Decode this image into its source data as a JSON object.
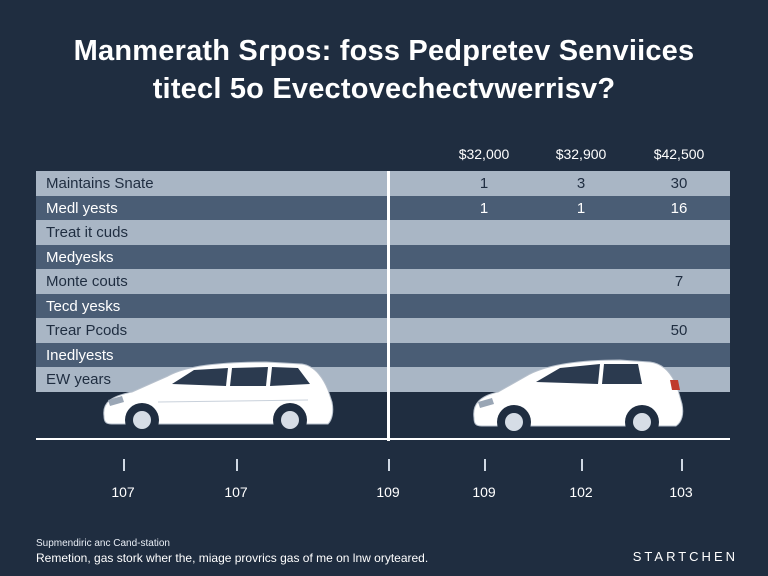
{
  "title_lines": [
    "Manmerath Sɾpos: foss Pedpretev Senviices",
    "titecl 5o Evectovechectvwerrisv?"
  ],
  "chart_data": {
    "type": "table",
    "title": "Manmerath Sɾpos: foss Pedpretev Senviices titecl 5o Evectovechectvwerrisv?",
    "column_headers": [
      "$32,000",
      "$32,900",
      "$42,500"
    ],
    "rows": [
      {
        "label": "Maintains Snate",
        "values": [
          "1",
          "3",
          "30"
        ]
      },
      {
        "label": "Medl yests",
        "values": [
          "1",
          "1",
          "16"
        ]
      },
      {
        "label": "Treat it cuds",
        "values": [
          "",
          "",
          ""
        ]
      },
      {
        "label": "Medyesks",
        "values": [
          "",
          "",
          ""
        ]
      },
      {
        "label": "Monte couts",
        "values": [
          "",
          "",
          "7"
        ]
      },
      {
        "label": "Tecd yesks",
        "values": [
          "",
          "",
          ""
        ]
      },
      {
        "label": "Trear Pcods",
        "values": [
          "",
          "",
          "50"
        ]
      },
      {
        "label": "Inedlyests",
        "values": [
          "",
          "",
          ""
        ]
      },
      {
        "label": "EW years",
        "values": [
          "",
          "",
          ""
        ]
      }
    ],
    "x_tick_labels": [
      "107",
      "107",
      "109",
      "109",
      "102",
      "103"
    ]
  },
  "footer": {
    "source_label": "Supmendiric anc Cand-station",
    "note": "Remetion, gas stork wher the, miage provrics gas of me on lnw oryteared.",
    "brand": "STARTCHEN"
  },
  "colors": {
    "background": "#1f2d40",
    "row_light": "#a9b6c5",
    "row_dark": "#4a5d75"
  }
}
